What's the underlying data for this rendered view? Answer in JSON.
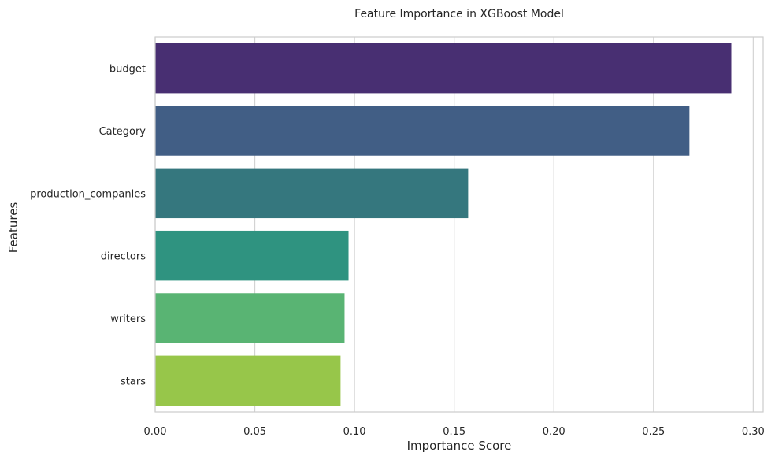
{
  "chart_data": {
    "type": "bar",
    "orientation": "horizontal",
    "title": "Feature Importance in XGBoost Model",
    "xlabel": "Importance Score",
    "ylabel": "Features",
    "categories": [
      "budget",
      "Category",
      "production_companies",
      "directors",
      "writers",
      "stars"
    ],
    "values": [
      0.289,
      0.268,
      0.157,
      0.097,
      0.095,
      0.093
    ],
    "colors": [
      "#482f72",
      "#415e85",
      "#35777e",
      "#2f9380",
      "#59b473",
      "#97c64a"
    ],
    "xlim": [
      0,
      0.305
    ],
    "xticks": [
      0.0,
      0.05,
      0.1,
      0.15,
      0.2,
      0.25,
      0.3
    ],
    "xtick_labels": [
      "0.00",
      "0.05",
      "0.10",
      "0.15",
      "0.20",
      "0.25",
      "0.30"
    ],
    "grid": "x-axis vertical gridlines",
    "legend": "none"
  }
}
